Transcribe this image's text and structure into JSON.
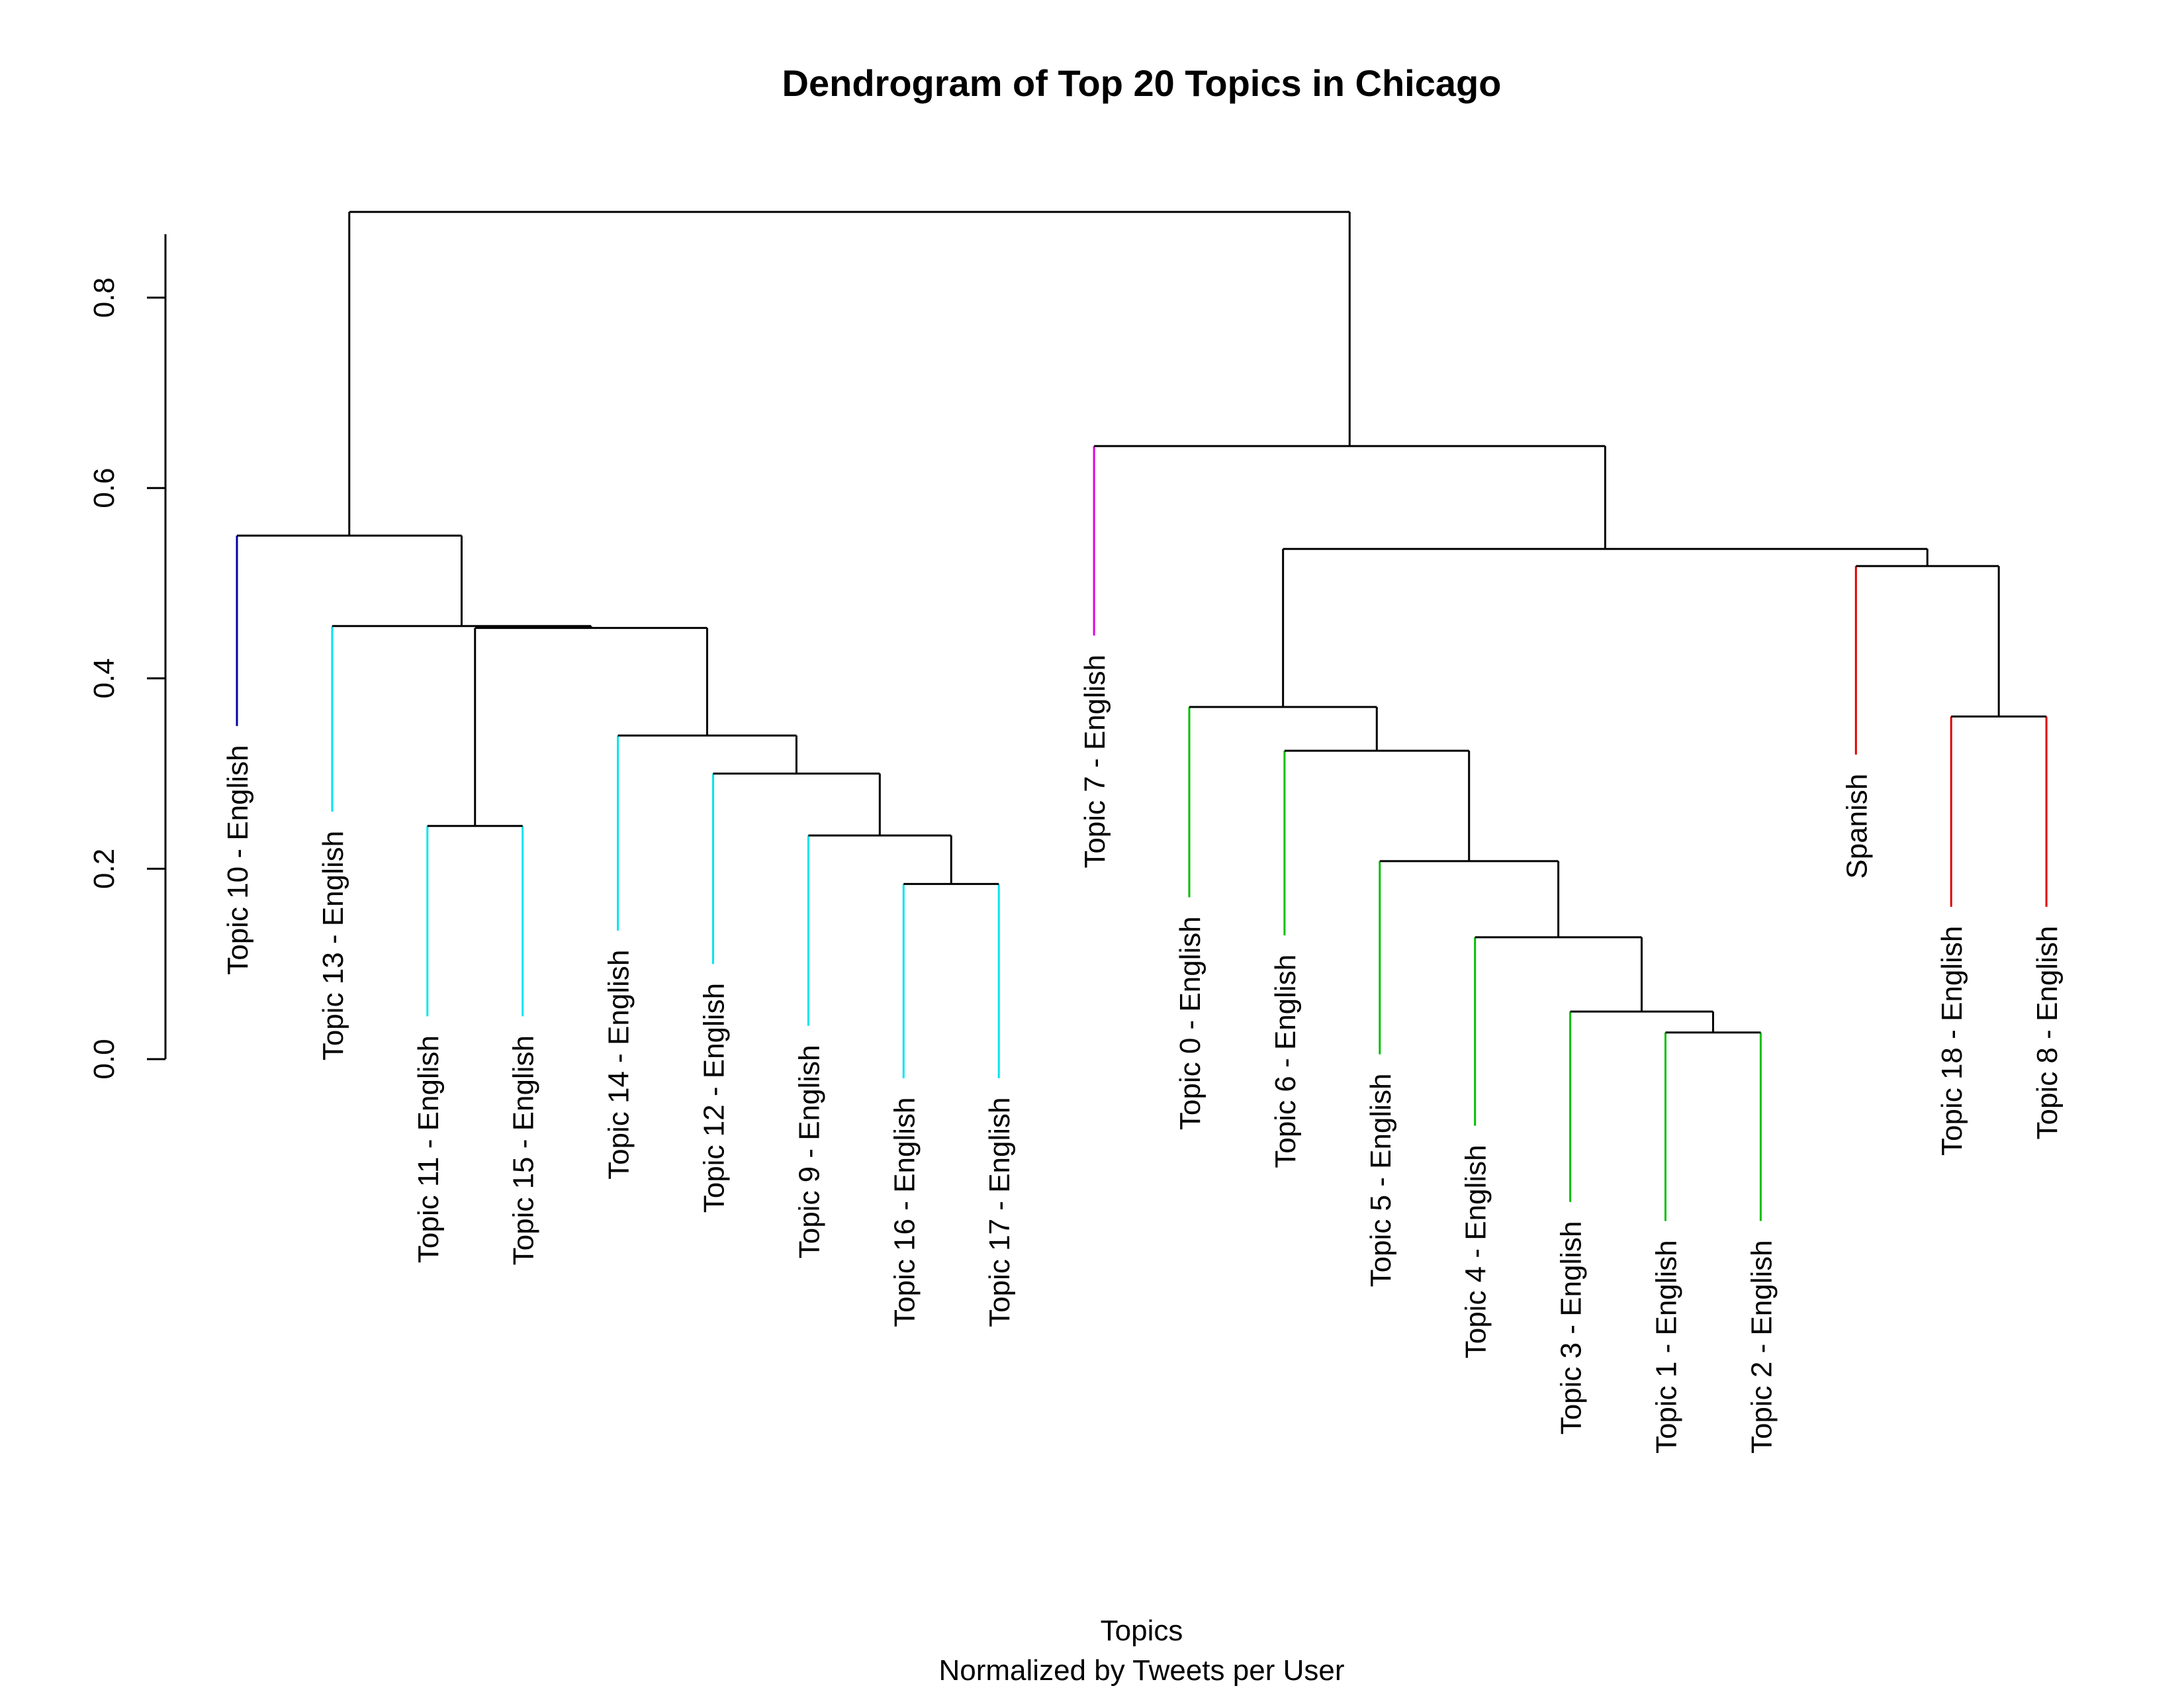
{
  "chart_data": {
    "type": "dendrogram",
    "title": "Dendrogram of Top 20 Topics in Chicago",
    "xlabel": "Topics",
    "xlabel_sub": "Normalized by Tweets per User",
    "ylabel": "",
    "ylim": [
      0,
      0.9
    ],
    "yticks": [
      {
        "value": 0.0,
        "label": "0.0"
      },
      {
        "value": 0.2,
        "label": "0.2"
      },
      {
        "value": 0.4,
        "label": "0.4"
      },
      {
        "value": 0.6,
        "label": "0.6"
      },
      {
        "value": 0.8,
        "label": "0.8"
      }
    ],
    "leaf_label_offset": 0.02,
    "leaves": [
      {
        "label": "Topic 10 - English",
        "height": 0.35,
        "color": "#0000a0"
      },
      {
        "label": "Topic 13 - English",
        "height": 0.26,
        "color": "#00e5ee"
      },
      {
        "label": "Topic 11 - English",
        "height": 0.045,
        "color": "#00e5ee"
      },
      {
        "label": "Topic 15 - English",
        "height": 0.045,
        "color": "#00e5ee"
      },
      {
        "label": "Topic 14 - English",
        "height": 0.135,
        "color": "#00e5ee"
      },
      {
        "label": "Topic 12 - English",
        "height": 0.1,
        "color": "#00e5ee"
      },
      {
        "label": "Topic 9 - English",
        "height": 0.035,
        "color": "#00e5ee"
      },
      {
        "label": "Topic 16 - English",
        "height": -0.02,
        "color": "#00e5ee"
      },
      {
        "label": "Topic 17 - English",
        "height": -0.02,
        "color": "#00e5ee"
      },
      {
        "label": "Topic 7 - English",
        "height": 0.445,
        "color": "#e000e0"
      },
      {
        "label": "Topic 0 - English",
        "height": 0.17,
        "color": "#00c000"
      },
      {
        "label": "Topic 6 - English",
        "height": 0.13,
        "color": "#00c000"
      },
      {
        "label": "Topic 5 - English",
        "height": 0.005,
        "color": "#00c000"
      },
      {
        "label": "Topic 4 - English",
        "height": -0.07,
        "color": "#00c000"
      },
      {
        "label": "Topic 3 - English",
        "height": -0.15,
        "color": "#00c000"
      },
      {
        "label": "Topic 1 - English",
        "height": -0.17,
        "color": "#00c000"
      },
      {
        "label": "Topic 2 - English",
        "height": -0.17,
        "color": "#00c000"
      },
      {
        "label": "Spanish",
        "height": 0.32,
        "color": "#e00000"
      },
      {
        "label": "Topic 18 - English",
        "height": 0.16,
        "color": "#e00000"
      },
      {
        "label": "Topic 8 - English",
        "height": 0.16,
        "color": "#e00000"
      }
    ],
    "merges": [
      {
        "left": "L16",
        "right": "L17",
        "height": 0.028,
        "color": "#000000"
      },
      {
        "left": "L15",
        "right": "N0",
        "height": 0.05,
        "color": "#000000"
      },
      {
        "left": "L14",
        "right": "N1",
        "height": 0.128,
        "color": "#000000"
      },
      {
        "left": "L13",
        "right": "N2",
        "height": 0.208,
        "color": "#000000"
      },
      {
        "left": "L12",
        "right": "N3",
        "height": 0.324,
        "color": "#000000"
      },
      {
        "left": "L11",
        "right": "N4",
        "height": 0.37,
        "color": "#000000"
      },
      {
        "left": "L8",
        "right": "L9",
        "height": 0.184,
        "color": "#000000"
      },
      {
        "left": "L7",
        "right": "N6",
        "height": 0.235,
        "color": "#000000"
      },
      {
        "left": "L6",
        "right": "N7",
        "height": 0.3,
        "color": "#000000"
      },
      {
        "left": "L5",
        "right": "N8",
        "height": 0.34,
        "color": "#000000"
      },
      {
        "left": "L3",
        "right": "L4",
        "height": 0.245,
        "color": "#000000"
      },
      {
        "left": "N10",
        "right": "N9",
        "height": 0.453,
        "color": "#000000"
      },
      {
        "left": "L2",
        "right": "N11",
        "height": 0.455,
        "color": "#000000"
      },
      {
        "left": "L1",
        "right": "N12",
        "height": 0.55,
        "color": "#000000"
      },
      {
        "left": "L19",
        "right": "L20",
        "height": 0.36,
        "color": "#000000"
      },
      {
        "left": "L18",
        "right": "N14",
        "height": 0.518,
        "color": "#000000"
      },
      {
        "left": "N5",
        "right": "N15",
        "height": 0.536,
        "color": "#000000"
      },
      {
        "left": "L10",
        "right": "N16",
        "height": 0.644,
        "color": "#000000"
      },
      {
        "left": "N13",
        "right": "N17",
        "height": 0.89,
        "color": "#000000"
      }
    ]
  }
}
